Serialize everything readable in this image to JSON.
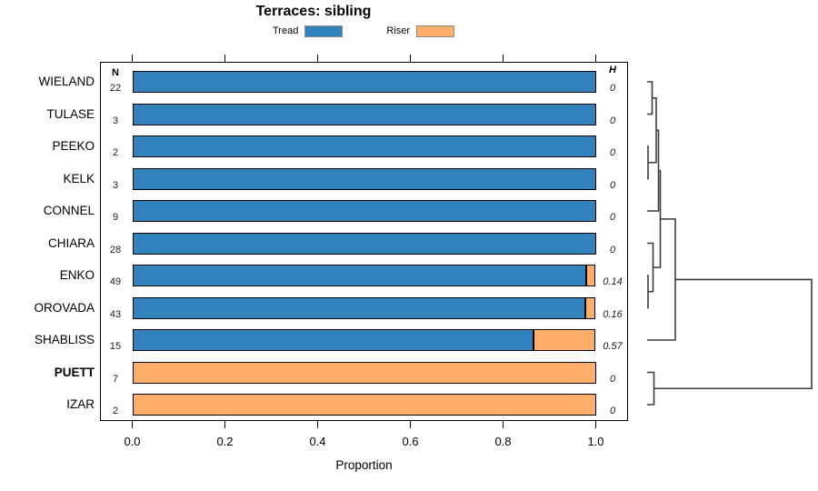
{
  "title": "Terraces: sibling",
  "legend": {
    "items": [
      {
        "label": "Tread",
        "color": "#3182bd"
      },
      {
        "label": "Riser",
        "color": "#fdae6b"
      }
    ]
  },
  "columns": {
    "n_header": "N",
    "h_header": "H"
  },
  "axis": {
    "xlabel": "Proportion",
    "tick_labels": [
      "0.0",
      "0.2",
      "0.4",
      "0.6",
      "0.8",
      "1.0"
    ]
  },
  "chart_data": {
    "type": "bar",
    "orientation": "horizontal",
    "stacked": true,
    "title": "Terraces: sibling",
    "xlabel": "Proportion",
    "xlim": [
      0,
      1
    ],
    "xticks": [
      0,
      0.2,
      0.4,
      0.6,
      0.8,
      1.0
    ],
    "legend_position": "top",
    "grid": false,
    "categories": [
      "WIELAND",
      "TULASE",
      "PEEKO",
      "KELK",
      "CONNEL",
      "CHIARA",
      "ENKO",
      "OROVADA",
      "SHABLISS",
      "PUETT",
      "IZAR"
    ],
    "bold_categories": [
      "PUETT"
    ],
    "n_counts": [
      22,
      3,
      2,
      3,
      9,
      28,
      49,
      43,
      15,
      7,
      2
    ],
    "h_entropy": [
      0,
      0,
      0,
      0,
      0,
      0,
      0.14,
      0.16,
      0.57,
      0,
      0
    ],
    "series": [
      {
        "name": "Tread",
        "color": "#3182bd",
        "values": [
          1,
          1,
          1,
          1,
          1,
          1,
          0.98,
          0.977,
          0.865,
          0,
          0
        ]
      },
      {
        "name": "Riser",
        "color": "#fdae6b",
        "values": [
          0,
          0,
          0,
          0,
          0,
          0,
          0.02,
          0.023,
          0.135,
          1,
          1
        ]
      }
    ],
    "dendrogram": {
      "line_color": "#3c3c3c",
      "merges": [
        {
          "a": "ENKO",
          "b": "OROVADA",
          "h": 1
        },
        {
          "a": "PEEKO",
          "b": "KELK",
          "h": 1
        },
        {
          "a": "WIELAND",
          "b": "TULASE",
          "h": 5.5
        },
        {
          "a": "PUETT",
          "b": "IZAR",
          "h": 7.5
        },
        {
          "a": "CHIARA",
          "b": "m0",
          "h": 6.5
        },
        {
          "a": "m2",
          "b": "m1",
          "h": 10
        },
        {
          "a": "m5",
          "b": "CONNEL",
          "h": 12.5
        },
        {
          "a": "m6",
          "b": "m4",
          "h": 14.5
        },
        {
          "a": "m7",
          "b": "SHABLISS",
          "h": 31
        },
        {
          "a": "m8",
          "b": "m3",
          "h": 181
        }
      ]
    }
  }
}
